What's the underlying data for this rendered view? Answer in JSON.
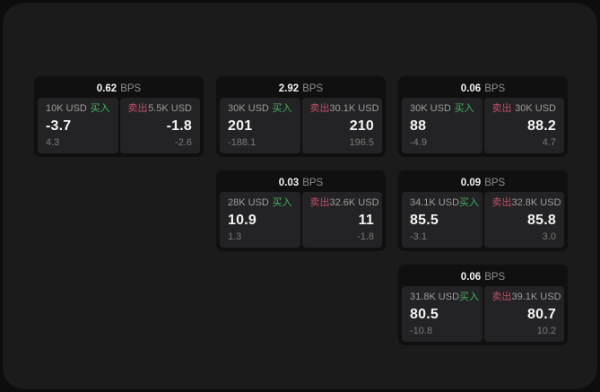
{
  "labels": {
    "bps": "BPS",
    "buy": "买入",
    "sell": "卖出"
  },
  "colors": {
    "page_bg": "#0d0d0d",
    "panel_bg": "#1b1b1c",
    "card_bg": "#101011",
    "tile_bg": "#232325",
    "buy_green": "#43b05c",
    "sell_red": "#c44d66",
    "primary_text": "#f4f4f4",
    "muted_text": "#9d9d9d",
    "faint_text": "#7a7a7a"
  },
  "cards": [
    {
      "bps": "0.62",
      "buy": {
        "amount": "10K USD",
        "price": "-3.7",
        "delta": "4.3"
      },
      "sell": {
        "amount": "5.5K USD",
        "price": "-1.8",
        "delta": "-2.6"
      }
    },
    {
      "bps": "2.92",
      "buy": {
        "amount": "30K USD",
        "price": "201",
        "delta": "-188.1"
      },
      "sell": {
        "amount": "30.1K USD",
        "price": "210",
        "delta": "196.5"
      }
    },
    {
      "bps": "0.06",
      "buy": {
        "amount": "30K USD",
        "price": "88",
        "delta": "-4.9"
      },
      "sell": {
        "amount": "30K USD",
        "price": "88.2",
        "delta": "4.7"
      }
    },
    {
      "bps": "0.03",
      "buy": {
        "amount": "28K USD",
        "price": "10.9",
        "delta": "1.3"
      },
      "sell": {
        "amount": "32.6K USD",
        "price": "11",
        "delta": "-1.8"
      }
    },
    {
      "bps": "0.09",
      "buy": {
        "amount": "34.1K USD",
        "price": "85.5",
        "delta": "-3.1"
      },
      "sell": {
        "amount": "32.8K USD",
        "price": "85.8",
        "delta": "3.0"
      }
    },
    {
      "bps": "0.06",
      "buy": {
        "amount": "31.8K USD",
        "price": "80.5",
        "delta": "-10.8"
      },
      "sell": {
        "amount": "39.1K USD",
        "price": "80.7",
        "delta": "10.2"
      }
    }
  ]
}
